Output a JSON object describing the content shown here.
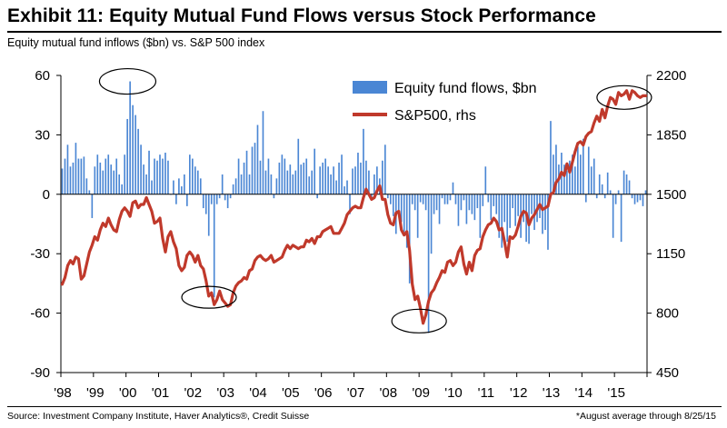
{
  "header": {
    "title": "Exhibit 11: Equity Mutual Fund Flows versus Stock Performance",
    "subtitle": "Equity mutual fund inflows ($bn) vs. S&P 500 index"
  },
  "footer": {
    "source": "Source: Investment Company Institute, Haver Analytics®, Credit Suisse",
    "note": "*August average through 8/25/15"
  },
  "colors": {
    "bars": "#4a86d4",
    "line": "#c0392b",
    "axis": "#000000"
  },
  "chart_data": {
    "type": "bar+line",
    "x_start": 1998.0,
    "x_step": 0.08333,
    "x_range": [
      1998,
      2016
    ],
    "x_tick_labels": [
      "'98",
      "'99",
      "'00",
      "'01",
      "'02",
      "'03",
      "'04",
      "'05",
      "'06",
      "'07",
      "'08",
      "'09",
      "'10",
      "'11",
      "'12",
      "'13",
      "'14",
      "'15"
    ],
    "y_left": {
      "range": [
        -90,
        60
      ],
      "ticks": [
        60,
        30,
        0,
        -30,
        -60,
        -90
      ]
    },
    "y_right": {
      "range": [
        450,
        2200
      ],
      "ticks": [
        2200,
        1850,
        1500,
        1150,
        800,
        450
      ]
    },
    "legend": {
      "position": "top-right"
    },
    "series": [
      {
        "name": "Equity fund flows, $bn",
        "type": "bar",
        "axis": "left",
        "values": [
          13,
          18,
          25,
          14,
          16,
          26,
          18,
          18,
          19,
          8,
          2,
          -12,
          14,
          20,
          16,
          12,
          18,
          20,
          15,
          12,
          18,
          10,
          5,
          20,
          38,
          57,
          45,
          40,
          33,
          25,
          15,
          10,
          22,
          7,
          18,
          17,
          20,
          18,
          21,
          17,
          0,
          7,
          -5,
          8,
          4,
          10,
          -6,
          20,
          18,
          14,
          12,
          8,
          -7,
          -10,
          -21,
          -5,
          -52,
          -5,
          -2,
          10,
          -3,
          -7,
          -2,
          5,
          8,
          18,
          10,
          16,
          22,
          10,
          24,
          26,
          35,
          17,
          42,
          12,
          18,
          10,
          -2,
          8,
          16,
          20,
          18,
          12,
          15,
          10,
          12,
          28,
          15,
          16,
          18,
          9,
          12,
          23,
          -2,
          14,
          16,
          18,
          14,
          10,
          14,
          7,
          16,
          20,
          4,
          7,
          -10,
          13,
          14,
          21,
          16,
          33,
          17,
          12,
          -2,
          10,
          14,
          8,
          17,
          25,
          -2,
          -5,
          -11,
          -20,
          -8,
          -14,
          -19,
          -27,
          -45,
          -5,
          -8,
          -22,
          -4,
          -5,
          -8,
          -70,
          -30,
          -10,
          -8,
          -15,
          -2,
          -5,
          -5,
          -3,
          6,
          -5,
          -16,
          -8,
          -3,
          -15,
          -8,
          -10,
          -13,
          -7,
          -22,
          -6,
          14,
          -4,
          -13,
          -6,
          -10,
          -22,
          -27,
          -14,
          -24,
          -17,
          -7,
          -16,
          -11,
          -22,
          -14,
          -24,
          -25,
          -10,
          -18,
          -14,
          -12,
          -20,
          -18,
          -28,
          37,
          20,
          25,
          15,
          21,
          15,
          12,
          17,
          20,
          14,
          24,
          20,
          28,
          -4,
          24,
          14,
          18,
          -2,
          10,
          5,
          -2,
          11,
          2,
          -22,
          -5,
          2,
          -24,
          12,
          10,
          7,
          -2,
          -5,
          -4,
          -3,
          -6,
          2
        ]
      },
      {
        "name": "S&P500, rhs",
        "type": "line",
        "axis": "right",
        "values": [
          970,
          1010,
          1080,
          1110,
          1090,
          1130,
          1120,
          1000,
          1020,
          1090,
          1160,
          1200,
          1250,
          1230,
          1290,
          1330,
          1310,
          1360,
          1320,
          1290,
          1280,
          1350,
          1400,
          1420,
          1400,
          1370,
          1450,
          1460,
          1420,
          1440,
          1440,
          1480,
          1440,
          1400,
          1330,
          1340,
          1360,
          1240,
          1160,
          1250,
          1280,
          1220,
          1180,
          1080,
          1050,
          1070,
          1140,
          1160,
          1140,
          1100,
          1140,
          1080,
          1060,
          990,
          900,
          920,
          850,
          880,
          930,
          880,
          860,
          840,
          850,
          920,
          960,
          980,
          990,
          1010,
          1000,
          1050,
          1060,
          1110,
          1130,
          1140,
          1120,
          1110,
          1120,
          1140,
          1100,
          1110,
          1120,
          1130,
          1170,
          1200,
          1180,
          1200,
          1190,
          1180,
          1190,
          1190,
          1230,
          1220,
          1240,
          1210,
          1250,
          1250,
          1280,
          1290,
          1300,
          1310,
          1270,
          1270,
          1270,
          1300,
          1330,
          1380,
          1400,
          1420,
          1430,
          1420,
          1420,
          1480,
          1530,
          1500,
          1470,
          1480,
          1520,
          1550,
          1470,
          1470,
          1380,
          1330,
          1320,
          1390,
          1400,
          1290,
          1260,
          1280,
          1170,
          970,
          880,
          900,
          830,
          740,
          790,
          870,
          920,
          940,
          980,
          1010,
          1050,
          1040,
          1100,
          1110,
          1080,
          1100,
          1160,
          1190,
          1090,
          1030,
          1100,
          1050,
          1140,
          1170,
          1180,
          1250,
          1290,
          1320,
          1330,
          1360,
          1340,
          1290,
          1300,
          1220,
          1130,
          1250,
          1240,
          1260,
          1310,
          1370,
          1400,
          1390,
          1320,
          1360,
          1380,
          1410,
          1440,
          1410,
          1420,
          1430,
          1500,
          1510,
          1570,
          1590,
          1630,
          1610,
          1680,
          1630,
          1690,
          1750,
          1800,
          1810,
          1790,
          1840,
          1860,
          1870,
          1920,
          1960,
          1930,
          2000,
          1950,
          2020,
          2070,
          2060,
          2030,
          2100,
          2080,
          2090,
          2110,
          2060,
          2110,
          2100,
          2080,
          2070,
          2080,
          2080
        ]
      }
    ]
  }
}
